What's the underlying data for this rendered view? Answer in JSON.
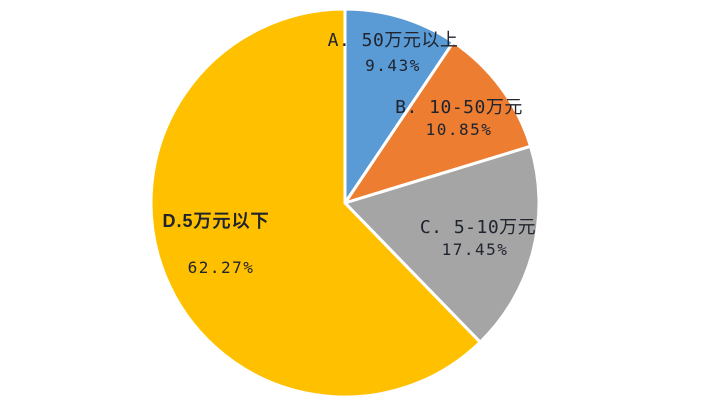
{
  "figure": {
    "background": "#FFFFFF"
  },
  "chart_data": {
    "type": "pie",
    "legend": "none",
    "start_angle_deg": 0,
    "direction": "clockwise",
    "total": 100,
    "separator_color": "#FFFFFF",
    "label_color": "#20242E",
    "slices": [
      {
        "id": "A",
        "label": "A. 50万元以上",
        "value": 9.43,
        "percent_label": "9.43%",
        "color": "#5B9BD5"
      },
      {
        "id": "B",
        "label": "B. 10-50万元",
        "value": 10.85,
        "percent_label": "10.85%",
        "color": "#ED7D31"
      },
      {
        "id": "C",
        "label": "C. 5-10万元",
        "value": 17.45,
        "percent_label": "17.45%",
        "color": "#A5A5A5"
      },
      {
        "id": "D",
        "label": "D.5万元以下",
        "value": 62.27,
        "percent_label": "62.27%",
        "color": "#FFC000"
      }
    ]
  }
}
